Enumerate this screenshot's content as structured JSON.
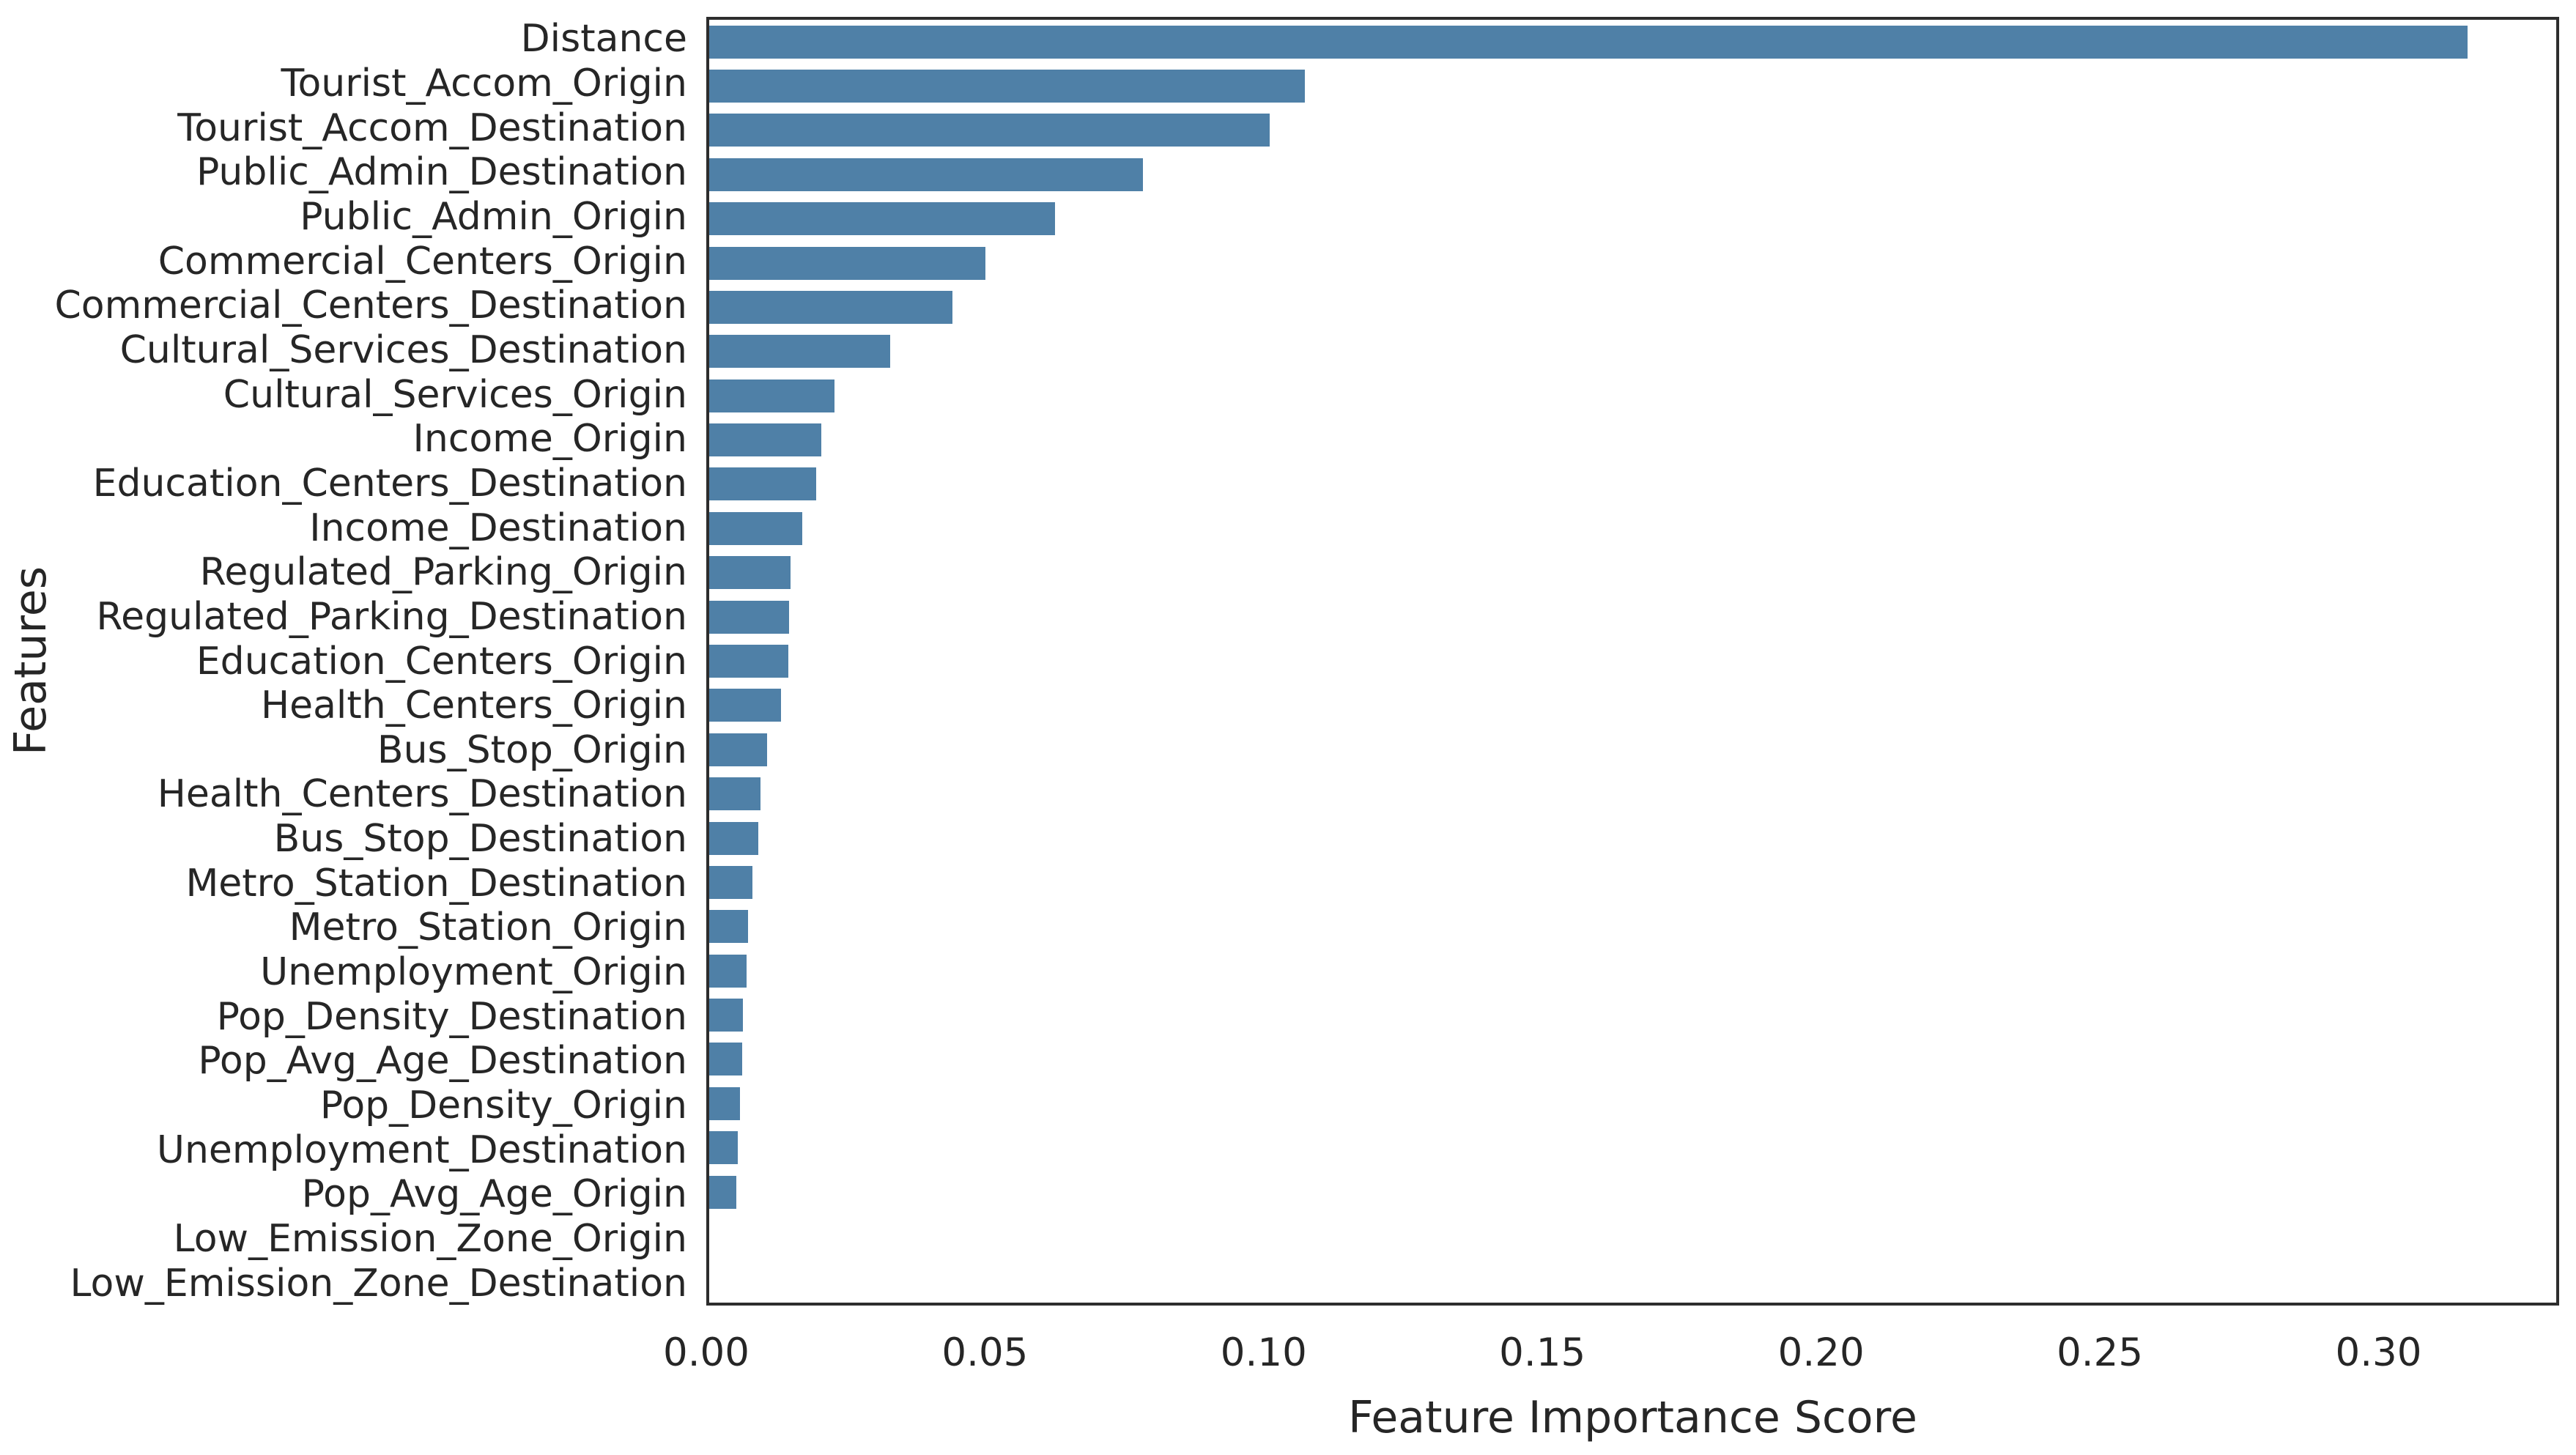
{
  "figure": {
    "background_color": "#ffffff",
    "frame_color": "#2d2d2d",
    "text_color": "#262626"
  },
  "chart_data": {
    "type": "bar",
    "orientation": "horizontal",
    "title": "",
    "xlabel": "Feature Importance Score",
    "ylabel": "Features",
    "bar_color": "#4F80A7",
    "grid": false,
    "legend": "none",
    "xlim": [
      0,
      0.3324
    ],
    "xticks": [
      0.0,
      0.05,
      0.1,
      0.15,
      0.2,
      0.25,
      0.3
    ],
    "xtick_labels": [
      "0.00",
      "0.05",
      "0.10",
      "0.15",
      "0.20",
      "0.25",
      "0.30"
    ],
    "categories": [
      "Distance",
      "Tourist_Accom_Origin",
      "Tourist_Accom_Destination",
      "Public_Admin_Destination",
      "Public_Admin_Origin",
      "Commercial_Centers_Origin",
      "Commercial_Centers_Destination",
      "Cultural_Services_Destination",
      "Cultural_Services_Origin",
      "Income_Origin",
      "Education_Centers_Destination",
      "Income_Destination",
      "Regulated_Parking_Origin",
      "Regulated_Parking_Destination",
      "Education_Centers_Origin",
      "Health_Centers_Origin",
      "Bus_Stop_Origin",
      "Health_Centers_Destination",
      "Bus_Stop_Destination",
      "Metro_Station_Destination",
      "Metro_Station_Origin",
      "Unemployment_Origin",
      "Pop_Density_Destination",
      "Pop_Avg_Age_Destination",
      "Pop_Density_Origin",
      "Unemployment_Destination",
      "Pop_Avg_Age_Origin",
      "Low_Emission_Zone_Origin",
      "Low_Emission_Zone_Destination"
    ],
    "values": [
      0.3164,
      0.1072,
      0.1009,
      0.0781,
      0.0622,
      0.0497,
      0.0438,
      0.0326,
      0.0225,
      0.0202,
      0.0192,
      0.0168,
      0.0147,
      0.0144,
      0.0142,
      0.0129,
      0.0104,
      0.0092,
      0.0088,
      0.0078,
      0.007,
      0.0067,
      0.0061,
      0.0059,
      0.0056,
      0.0051,
      0.0049,
      0.0,
      0.0
    ]
  }
}
